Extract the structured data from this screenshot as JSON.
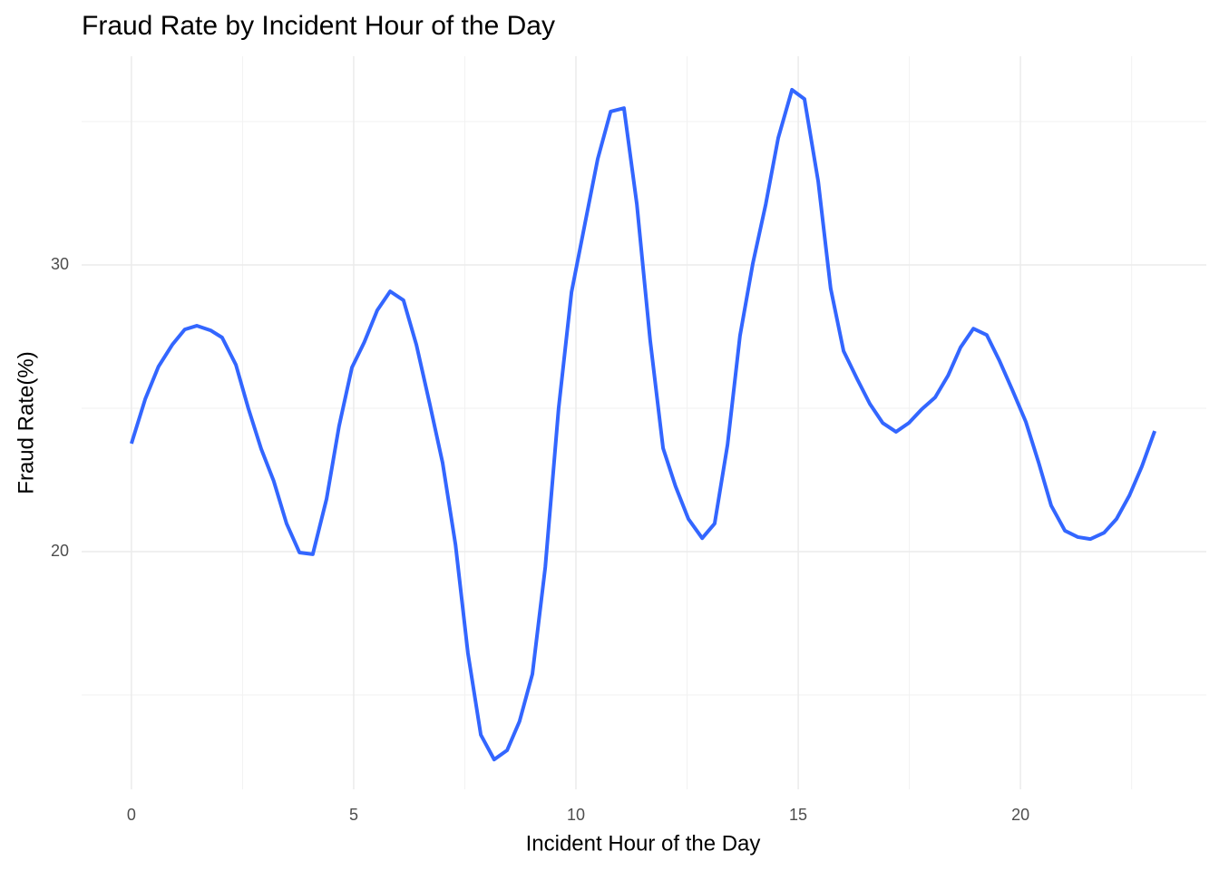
{
  "chart_data": {
    "type": "line",
    "title": "Fraud Rate by Incident Hour of the Day",
    "x_label": "Incident Hour of the Day",
    "y_label": "Fraud Rate(%)",
    "xlim": [
      -1.12,
      24.18
    ],
    "ylim": [
      11.71,
      37.28
    ],
    "xticks": [
      0,
      5,
      10,
      15,
      20
    ],
    "yticks": [
      20,
      30
    ],
    "grid": true,
    "series": [
      {
        "color": "#3366FF",
        "x": [
          0,
          0.31,
          0.61,
          0.92,
          1.2,
          1.47,
          1.78,
          2.04,
          2.35,
          2.63,
          2.92,
          3.2,
          3.49,
          3.78,
          4.08,
          4.39,
          4.67,
          4.96,
          5.24,
          5.53,
          5.82,
          6.12,
          6.41,
          6.71,
          7.0,
          7.29,
          7.57,
          7.86,
          8.16,
          8.45,
          8.73,
          9.02,
          9.31,
          9.61,
          9.9,
          10.2,
          10.49,
          10.78,
          11.08,
          11.37,
          11.67,
          11.96,
          12.24,
          12.53,
          12.84,
          13.12,
          13.41,
          13.69,
          13.98,
          14.27,
          14.55,
          14.86,
          15.14,
          15.45,
          15.73,
          16.02,
          16.33,
          16.61,
          16.9,
          17.2,
          17.49,
          17.78,
          18.08,
          18.37,
          18.65,
          18.94,
          19.24,
          19.53,
          19.82,
          20.12,
          20.41,
          20.69,
          21.0,
          21.29,
          21.57,
          21.88,
          22.16,
          22.45,
          22.73,
          23.02
        ],
        "values": [
          23.77,
          25.32,
          26.46,
          27.22,
          27.75,
          27.88,
          27.72,
          27.47,
          26.52,
          25.0,
          23.58,
          22.47,
          20.98,
          19.97,
          19.91,
          21.84,
          24.37,
          26.42,
          27.31,
          28.42,
          29.08,
          28.77,
          27.22,
          25.16,
          23.1,
          20.25,
          16.46,
          13.61,
          12.75,
          13.07,
          14.08,
          15.73,
          19.46,
          25.0,
          29.05,
          31.42,
          33.7,
          35.35,
          35.47,
          32.12,
          27.37,
          23.61,
          22.28,
          21.14,
          20.47,
          20.98,
          23.73,
          27.53,
          30.06,
          32.12,
          34.43,
          36.11,
          35.79,
          32.91,
          29.18,
          27.0,
          26.01,
          25.16,
          24.49,
          24.18,
          24.49,
          24.97,
          25.38,
          26.14,
          27.12,
          27.78,
          27.56,
          26.65,
          25.63,
          24.53,
          23.1,
          21.61,
          20.73,
          20.51,
          20.44,
          20.66,
          21.14,
          21.96,
          22.97,
          24.21
        ]
      }
    ]
  }
}
